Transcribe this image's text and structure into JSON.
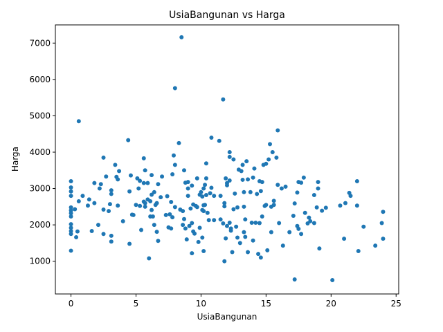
{
  "chart_data": {
    "type": "scatter",
    "title": "UsiaBangunan vs Harga",
    "xlabel": "UsiaBangunan",
    "ylabel": "Harga",
    "xlim": [
      -1.2,
      25.2
    ],
    "ylim": [
      100,
      7500
    ],
    "xticks": [
      0,
      5,
      10,
      15,
      20,
      25
    ],
    "yticks": [
      1000,
      2000,
      3000,
      4000,
      5000,
      6000,
      7000
    ],
    "marker_color": "#1f77b4",
    "grid": false,
    "points": [
      [
        0.0,
        3200
      ],
      [
        0.0,
        3030
      ],
      [
        0.0,
        2920
      ],
      [
        0.0,
        2800
      ],
      [
        0.0,
        2480
      ],
      [
        0.0,
        2400
      ],
      [
        0.0,
        2320
      ],
      [
        0.0,
        2230
      ],
      [
        0.0,
        2020
      ],
      [
        0.0,
        1920
      ],
      [
        0.0,
        1830
      ],
      [
        0.0,
        1750
      ],
      [
        0.0,
        1290
      ],
      [
        0.3,
        2430
      ],
      [
        0.4,
        1660
      ],
      [
        0.5,
        1820
      ],
      [
        0.6,
        4850
      ],
      [
        0.6,
        2650
      ],
      [
        0.9,
        2800
      ],
      [
        1.3,
        2530
      ],
      [
        1.4,
        2700
      ],
      [
        1.6,
        1830
      ],
      [
        1.8,
        3150
      ],
      [
        1.8,
        2600
      ],
      [
        2.1,
        2000
      ],
      [
        2.2,
        3000
      ],
      [
        2.3,
        3120
      ],
      [
        2.5,
        3850
      ],
      [
        2.5,
        2420
      ],
      [
        2.5,
        1750
      ],
      [
        2.7,
        3330
      ],
      [
        2.9,
        2380
      ],
      [
        3.0,
        2570
      ],
      [
        3.1,
        2850
      ],
      [
        3.1,
        2950
      ],
      [
        3.1,
        1700
      ],
      [
        3.1,
        1540
      ],
      [
        3.4,
        3650
      ],
      [
        3.5,
        3320
      ],
      [
        3.6,
        3250
      ],
      [
        3.6,
        2530
      ],
      [
        3.7,
        3480
      ],
      [
        4.0,
        2100
      ],
      [
        4.4,
        4330
      ],
      [
        4.5,
        2920
      ],
      [
        4.5,
        1480
      ],
      [
        4.6,
        3360
      ],
      [
        4.7,
        2280
      ],
      [
        4.8,
        2270
      ],
      [
        5.0,
        2550
      ],
      [
        5.1,
        3280
      ],
      [
        5.2,
        3000
      ],
      [
        5.3,
        2520
      ],
      [
        5.3,
        3210
      ],
      [
        5.4,
        1860
      ],
      [
        5.6,
        3830
      ],
      [
        5.6,
        3150
      ],
      [
        5.6,
        2640
      ],
      [
        5.7,
        3500
      ],
      [
        5.7,
        2600
      ],
      [
        5.7,
        2500
      ],
      [
        5.9,
        3150
      ],
      [
        5.9,
        2700
      ],
      [
        6.0,
        1080
      ],
      [
        6.1,
        2230
      ],
      [
        6.1,
        2650
      ],
      [
        6.2,
        3370
      ],
      [
        6.2,
        2830
      ],
      [
        6.2,
        2410
      ],
      [
        6.3,
        2230
      ],
      [
        6.4,
        2900
      ],
      [
        6.4,
        2000
      ],
      [
        6.5,
        2550
      ],
      [
        6.6,
        1810
      ],
      [
        6.6,
        2600
      ],
      [
        6.7,
        1560
      ],
      [
        6.7,
        3120
      ],
      [
        6.9,
        2760
      ],
      [
        7.0,
        3330
      ],
      [
        7.3,
        2270
      ],
      [
        7.4,
        2790
      ],
      [
        7.5,
        1930
      ],
      [
        7.6,
        2290
      ],
      [
        7.7,
        2630
      ],
      [
        7.7,
        1900
      ],
      [
        7.8,
        3390
      ],
      [
        7.8,
        2210
      ],
      [
        7.9,
        3910
      ],
      [
        8.0,
        3650
      ],
      [
        8.0,
        5760
      ],
      [
        8.0,
        2490
      ],
      [
        8.3,
        4250
      ],
      [
        8.4,
        2420
      ],
      [
        8.5,
        7160
      ],
      [
        8.6,
        2000
      ],
      [
        8.6,
        2380
      ],
      [
        8.7,
        3500
      ],
      [
        8.7,
        2160
      ],
      [
        8.8,
        3160
      ],
      [
        8.8,
        1900
      ],
      [
        8.9,
        1600
      ],
      [
        9.0,
        3180
      ],
      [
        9.0,
        3000
      ],
      [
        9.0,
        2800
      ],
      [
        9.1,
        1970
      ],
      [
        9.2,
        2450
      ],
      [
        9.3,
        3080
      ],
      [
        9.3,
        1220
      ],
      [
        9.3,
        2050
      ],
      [
        9.4,
        2560
      ],
      [
        9.4,
        1820
      ],
      [
        9.5,
        1760
      ],
      [
        9.6,
        2520
      ],
      [
        9.7,
        3280
      ],
      [
        9.7,
        2490
      ],
      [
        9.8,
        1530
      ],
      [
        9.9,
        2830
      ],
      [
        9.9,
        1920
      ],
      [
        10.0,
        2900
      ],
      [
        10.1,
        2410
      ],
      [
        10.1,
        2780
      ],
      [
        10.1,
        1650
      ],
      [
        10.2,
        2380
      ],
      [
        10.2,
        2540
      ],
      [
        10.2,
        1280
      ],
      [
        10.2,
        3000
      ],
      [
        10.3,
        3100
      ],
      [
        10.3,
        2550
      ],
      [
        10.4,
        3690
      ],
      [
        10.4,
        2820
      ],
      [
        10.4,
        3280
      ],
      [
        10.5,
        2330
      ],
      [
        10.6,
        2130
      ],
      [
        10.7,
        2870
      ],
      [
        10.8,
        4400
      ],
      [
        10.8,
        3020
      ],
      [
        11.0,
        2130
      ],
      [
        11.0,
        2800
      ],
      [
        11.4,
        4310
      ],
      [
        11.5,
        2800
      ],
      [
        11.5,
        2150
      ],
      [
        11.7,
        5450
      ],
      [
        11.7,
        2040
      ],
      [
        11.8,
        2510
      ],
      [
        11.8,
        2600
      ],
      [
        11.8,
        1000
      ],
      [
        11.9,
        3280
      ],
      [
        11.9,
        1630
      ],
      [
        12.0,
        3150
      ],
      [
        12.0,
        1970
      ],
      [
        12.0,
        3090
      ],
      [
        12.2,
        4000
      ],
      [
        12.2,
        3220
      ],
      [
        12.2,
        3870
      ],
      [
        12.2,
        2060
      ],
      [
        12.3,
        1840
      ],
      [
        12.3,
        1900
      ],
      [
        12.4,
        1250
      ],
      [
        12.5,
        3800
      ],
      [
        12.5,
        2430
      ],
      [
        12.6,
        2860
      ],
      [
        12.7,
        1950
      ],
      [
        12.8,
        1650
      ],
      [
        12.8,
        2480
      ],
      [
        12.9,
        3520
      ],
      [
        13.0,
        1500
      ],
      [
        13.1,
        3480
      ],
      [
        13.2,
        3240
      ],
      [
        13.2,
        3650
      ],
      [
        13.3,
        2900
      ],
      [
        13.3,
        2500
      ],
      [
        13.3,
        1800
      ],
      [
        13.4,
        1670
      ],
      [
        13.4,
        2150
      ],
      [
        13.5,
        3750
      ],
      [
        13.6,
        3250
      ],
      [
        13.6,
        1250
      ],
      [
        13.8,
        2900
      ],
      [
        13.9,
        2060
      ],
      [
        14.0,
        1570
      ],
      [
        14.0,
        3300
      ],
      [
        14.1,
        3550
      ],
      [
        14.2,
        2060
      ],
      [
        14.3,
        2850
      ],
      [
        14.4,
        1200
      ],
      [
        14.5,
        3200
      ],
      [
        14.5,
        2050
      ],
      [
        14.6,
        1100
      ],
      [
        14.6,
        2930
      ],
      [
        14.7,
        3180
      ],
      [
        14.7,
        2230
      ],
      [
        14.8,
        3650
      ],
      [
        14.9,
        2520
      ],
      [
        15.0,
        3680
      ],
      [
        15.0,
        2550
      ],
      [
        15.1,
        1300
      ],
      [
        15.2,
        3800
      ],
      [
        15.3,
        4220
      ],
      [
        15.4,
        2500
      ],
      [
        15.4,
        1800
      ],
      [
        15.5,
        4000
      ],
      [
        15.6,
        2550
      ],
      [
        15.6,
        2660
      ],
      [
        15.8,
        3850
      ],
      [
        15.9,
        4600
      ],
      [
        15.9,
        3100
      ],
      [
        16.0,
        2050
      ],
      [
        16.2,
        3000
      ],
      [
        16.3,
        1430
      ],
      [
        16.5,
        3050
      ],
      [
        16.8,
        1800
      ],
      [
        17.1,
        2250
      ],
      [
        17.2,
        2590
      ],
      [
        17.2,
        500
      ],
      [
        17.4,
        1970
      ],
      [
        17.4,
        2890
      ],
      [
        17.5,
        3180
      ],
      [
        17.5,
        1890
      ],
      [
        17.7,
        3160
      ],
      [
        17.7,
        1750
      ],
      [
        17.9,
        3300
      ],
      [
        18.0,
        2330
      ],
      [
        18.2,
        2040
      ],
      [
        18.3,
        2200
      ],
      [
        18.4,
        2100
      ],
      [
        18.7,
        2820
      ],
      [
        18.7,
        2050
      ],
      [
        18.9,
        2480
      ],
      [
        19.0,
        3000
      ],
      [
        19.0,
        3180
      ],
      [
        19.1,
        1350
      ],
      [
        19.3,
        2390
      ],
      [
        19.6,
        2470
      ],
      [
        20.1,
        480
      ],
      [
        20.7,
        2530
      ],
      [
        21.0,
        1620
      ],
      [
        21.1,
        2600
      ],
      [
        21.4,
        2880
      ],
      [
        21.5,
        2800
      ],
      [
        22.0,
        3200
      ],
      [
        22.0,
        2530
      ],
      [
        22.1,
        1280
      ],
      [
        22.5,
        1950
      ],
      [
        23.4,
        1430
      ],
      [
        23.9,
        2050
      ],
      [
        24.0,
        1620
      ],
      [
        24.0,
        2360
      ]
    ]
  }
}
